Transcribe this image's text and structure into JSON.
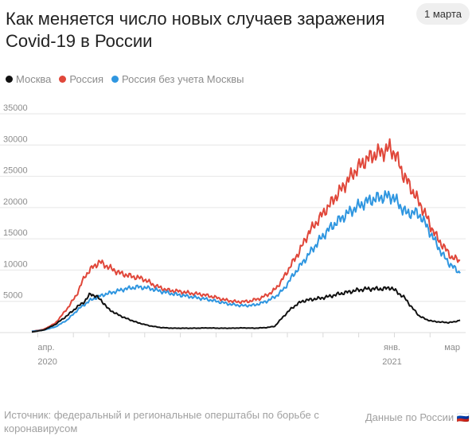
{
  "header": {
    "title": "Как меняется число новых случаев заражения Covid-19 в России",
    "date_badge": "1 марта"
  },
  "legend": [
    {
      "label": "Москва",
      "color": "#111111"
    },
    {
      "label": "Россия",
      "color": "#e0473a"
    },
    {
      "label": "Россия без учета Москвы",
      "color": "#2f96e0"
    }
  ],
  "footer": {
    "source": "Источник: федеральный и региональные оперштабы по борьбе с коронавирусом",
    "link": "Данные по России 🇷🇺"
  },
  "chart_data": {
    "type": "line",
    "x_unit": "days since start",
    "ylim": [
      0,
      35000
    ],
    "y_ticks": [
      5000,
      10000,
      15000,
      20000,
      25000,
      30000,
      35000
    ],
    "x_ticks": [
      {
        "day": 5,
        "label": "апр.",
        "sublabel": "2020"
      },
      {
        "day": 307,
        "label": "янв.",
        "sublabel": "2021"
      },
      {
        "day": 365,
        "label": "мар",
        "sublabel": ""
      }
    ],
    "grid": true,
    "series": [
      {
        "name": "Россия",
        "color": "#e0473a",
        "points": [
          [
            0,
            200
          ],
          [
            10,
            500
          ],
          [
            20,
            1500
          ],
          [
            30,
            3800
          ],
          [
            38,
            6000
          ],
          [
            45,
            9000
          ],
          [
            52,
            10500
          ],
          [
            58,
            11300
          ],
          [
            65,
            10500
          ],
          [
            75,
            9500
          ],
          [
            85,
            9000
          ],
          [
            95,
            8600
          ],
          [
            105,
            7500
          ],
          [
            115,
            6800
          ],
          [
            125,
            6600
          ],
          [
            135,
            6300
          ],
          [
            145,
            6100
          ],
          [
            155,
            5700
          ],
          [
            165,
            5200
          ],
          [
            175,
            4900
          ],
          [
            185,
            5000
          ],
          [
            195,
            5500
          ],
          [
            205,
            6500
          ],
          [
            212,
            8000
          ],
          [
            220,
            10500
          ],
          [
            228,
            13000
          ],
          [
            236,
            16000
          ],
          [
            244,
            18000
          ],
          [
            252,
            20000
          ],
          [
            260,
            22000
          ],
          [
            268,
            24000
          ],
          [
            276,
            26000
          ],
          [
            284,
            27500
          ],
          [
            292,
            28500
          ],
          [
            300,
            29000
          ],
          [
            305,
            29500
          ],
          [
            310,
            28500
          ],
          [
            316,
            25500
          ],
          [
            322,
            23500
          ],
          [
            328,
            21500
          ],
          [
            334,
            19500
          ],
          [
            340,
            17000
          ],
          [
            346,
            15000
          ],
          [
            352,
            13500
          ],
          [
            358,
            12000
          ],
          [
            365,
            11500
          ]
        ]
      },
      {
        "name": "Россия без учета Москвы",
        "color": "#2f96e0",
        "points": [
          [
            0,
            200
          ],
          [
            10,
            400
          ],
          [
            20,
            900
          ],
          [
            30,
            2000
          ],
          [
            40,
            3800
          ],
          [
            50,
            5200
          ],
          [
            60,
            6000
          ],
          [
            70,
            6500
          ],
          [
            80,
            7000
          ],
          [
            90,
            7300
          ],
          [
            100,
            7100
          ],
          [
            110,
            6600
          ],
          [
            120,
            6200
          ],
          [
            130,
            5900
          ],
          [
            140,
            5600
          ],
          [
            150,
            5300
          ],
          [
            160,
            4900
          ],
          [
            170,
            4500
          ],
          [
            180,
            4300
          ],
          [
            190,
            4400
          ],
          [
            200,
            5000
          ],
          [
            208,
            5800
          ],
          [
            215,
            7000
          ],
          [
            222,
            9000
          ],
          [
            230,
            11000
          ],
          [
            238,
            13000
          ],
          [
            246,
            15000
          ],
          [
            254,
            16700
          ],
          [
            262,
            18000
          ],
          [
            270,
            19200
          ],
          [
            278,
            20200
          ],
          [
            286,
            21000
          ],
          [
            294,
            21500
          ],
          [
            302,
            21800
          ],
          [
            308,
            21700
          ],
          [
            314,
            20200
          ],
          [
            320,
            19000
          ],
          [
            326,
            19300
          ],
          [
            332,
            18500
          ],
          [
            338,
            16500
          ],
          [
            344,
            14500
          ],
          [
            350,
            12500
          ],
          [
            356,
            11000
          ],
          [
            362,
            10000
          ],
          [
            365,
            9500
          ]
        ]
      },
      {
        "name": "Москва",
        "color": "#111111",
        "points": [
          [
            0,
            100
          ],
          [
            10,
            400
          ],
          [
            20,
            1300
          ],
          [
            30,
            2700
          ],
          [
            38,
            4000
          ],
          [
            45,
            5000
          ],
          [
            50,
            6200
          ],
          [
            55,
            5800
          ],
          [
            60,
            5000
          ],
          [
            65,
            3800
          ],
          [
            72,
            3000
          ],
          [
            80,
            2300
          ],
          [
            90,
            1600
          ],
          [
            100,
            1100
          ],
          [
            110,
            800
          ],
          [
            120,
            700
          ],
          [
            130,
            700
          ],
          [
            140,
            700
          ],
          [
            150,
            750
          ],
          [
            160,
            700
          ],
          [
            170,
            700
          ],
          [
            180,
            750
          ],
          [
            190,
            700
          ],
          [
            200,
            800
          ],
          [
            207,
            1000
          ],
          [
            214,
            2500
          ],
          [
            222,
            4000
          ],
          [
            230,
            5000
          ],
          [
            238,
            5300
          ],
          [
            246,
            5500
          ],
          [
            254,
            5800
          ],
          [
            262,
            6200
          ],
          [
            270,
            6500
          ],
          [
            278,
            6800
          ],
          [
            286,
            7000
          ],
          [
            294,
            7000
          ],
          [
            300,
            7000
          ],
          [
            306,
            7200
          ],
          [
            312,
            6400
          ],
          [
            318,
            5500
          ],
          [
            324,
            4000
          ],
          [
            330,
            2700
          ],
          [
            336,
            2100
          ],
          [
            342,
            1800
          ],
          [
            348,
            1700
          ],
          [
            354,
            1600
          ],
          [
            360,
            1700
          ],
          [
            365,
            2000
          ]
        ]
      }
    ]
  }
}
